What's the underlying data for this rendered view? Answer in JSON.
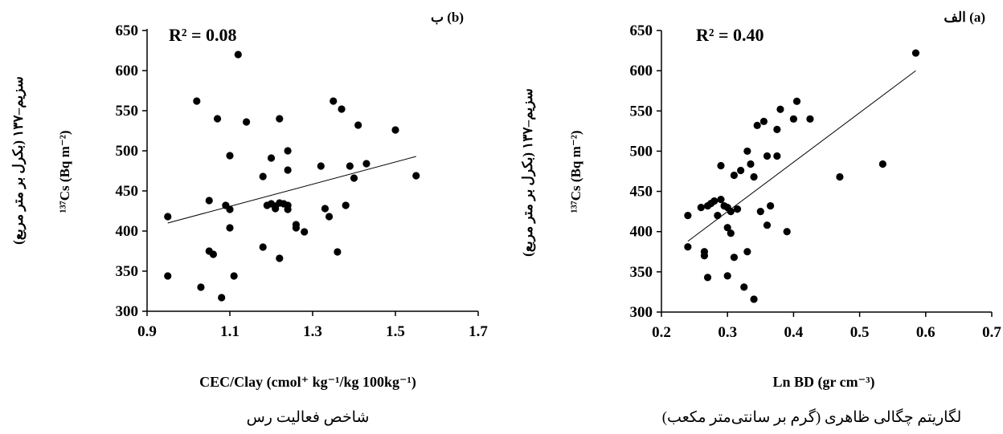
{
  "chart_data": [
    {
      "type": "scatter",
      "panel_label": "ب (b)",
      "annotation": "R² = 0.08",
      "xlabel": "CEC/Clay  (cmol⁺ kg⁻¹/kg 100kg⁻¹)",
      "xlabel_fa": "شاخص فعالیت رس",
      "ylabel": "¹³⁷Cs (Bq m⁻²)",
      "ylabel_fa": "سزیم–۱۳۷ (بکرل بر متر مربع)",
      "xlim": [
        0.9,
        1.7
      ],
      "ylim": [
        300,
        650
      ],
      "x_ticks": [
        "0.9",
        "1.1",
        "1.3",
        "1.5",
        "1.7"
      ],
      "y_ticks": [
        "300",
        "350",
        "400",
        "450",
        "500",
        "550",
        "600",
        "650"
      ],
      "trendline": {
        "x": [
          0.95,
          1.55
        ],
        "y": [
          410,
          493
        ]
      },
      "x": [
        0.95,
        0.95,
        1.02,
        1.03,
        1.05,
        1.05,
        1.06,
        1.07,
        1.08,
        1.09,
        1.1,
        1.1,
        1.1,
        1.11,
        1.12,
        1.14,
        1.18,
        1.18,
        1.19,
        1.2,
        1.2,
        1.21,
        1.21,
        1.22,
        1.22,
        1.22,
        1.23,
        1.24,
        1.24,
        1.24,
        1.24,
        1.26,
        1.26,
        1.28,
        1.32,
        1.33,
        1.34,
        1.35,
        1.36,
        1.37,
        1.38,
        1.39,
        1.4,
        1.41,
        1.43,
        1.5,
        1.55
      ],
      "y": [
        418,
        344,
        562,
        330,
        438,
        375,
        371,
        540,
        317,
        432,
        494,
        427,
        404,
        344,
        620,
        536,
        468,
        380,
        432,
        434,
        491,
        431,
        428,
        435,
        540,
        366,
        434,
        500,
        476,
        432,
        427,
        408,
        404,
        399,
        481,
        428,
        418,
        562,
        374,
        552,
        432,
        481,
        466,
        532,
        484,
        526,
        469
      ]
    },
    {
      "type": "scatter",
      "panel_label": "الف (a)",
      "annotation": "R² = 0.40",
      "xlabel": "Ln BD (gr cm⁻³)",
      "xlabel_fa": "لگاریتم چگالی ظاهری (گرم بر سانتی‌متر مکعب)",
      "ylabel": "¹³⁷Cs (Bq m⁻²)",
      "ylabel_fa": "سزیم–۱۳۷ (بکرل بر متر مربع)",
      "xlim": [
        0.2,
        0.7
      ],
      "ylim": [
        300,
        650
      ],
      "x_ticks": [
        "0.2",
        "0.3",
        "0.4",
        "0.5",
        "0.6",
        "0.7"
      ],
      "y_ticks": [
        "300",
        "350",
        "400",
        "450",
        "500",
        "550",
        "600",
        "650"
      ],
      "trendline": {
        "x": [
          0.24,
          0.585
        ],
        "y": [
          388,
          600
        ]
      },
      "x": [
        0.24,
        0.24,
        0.26,
        0.265,
        0.265,
        0.27,
        0.27,
        0.275,
        0.28,
        0.285,
        0.29,
        0.29,
        0.295,
        0.3,
        0.3,
        0.3,
        0.305,
        0.305,
        0.31,
        0.31,
        0.315,
        0.32,
        0.325,
        0.33,
        0.33,
        0.335,
        0.34,
        0.34,
        0.345,
        0.35,
        0.355,
        0.36,
        0.36,
        0.365,
        0.375,
        0.375,
        0.38,
        0.39,
        0.4,
        0.405,
        0.425,
        0.47,
        0.535,
        0.585
      ],
      "y": [
        420,
        381,
        430,
        375,
        370,
        432,
        343,
        435,
        438,
        420,
        440,
        482,
        432,
        405,
        430,
        345,
        425,
        398,
        470,
        368,
        428,
        476,
        331,
        500,
        375,
        484,
        468,
        316,
        532,
        425,
        537,
        494,
        408,
        432,
        527,
        494,
        552,
        400,
        540,
        562,
        540,
        468,
        484,
        622
      ]
    }
  ]
}
